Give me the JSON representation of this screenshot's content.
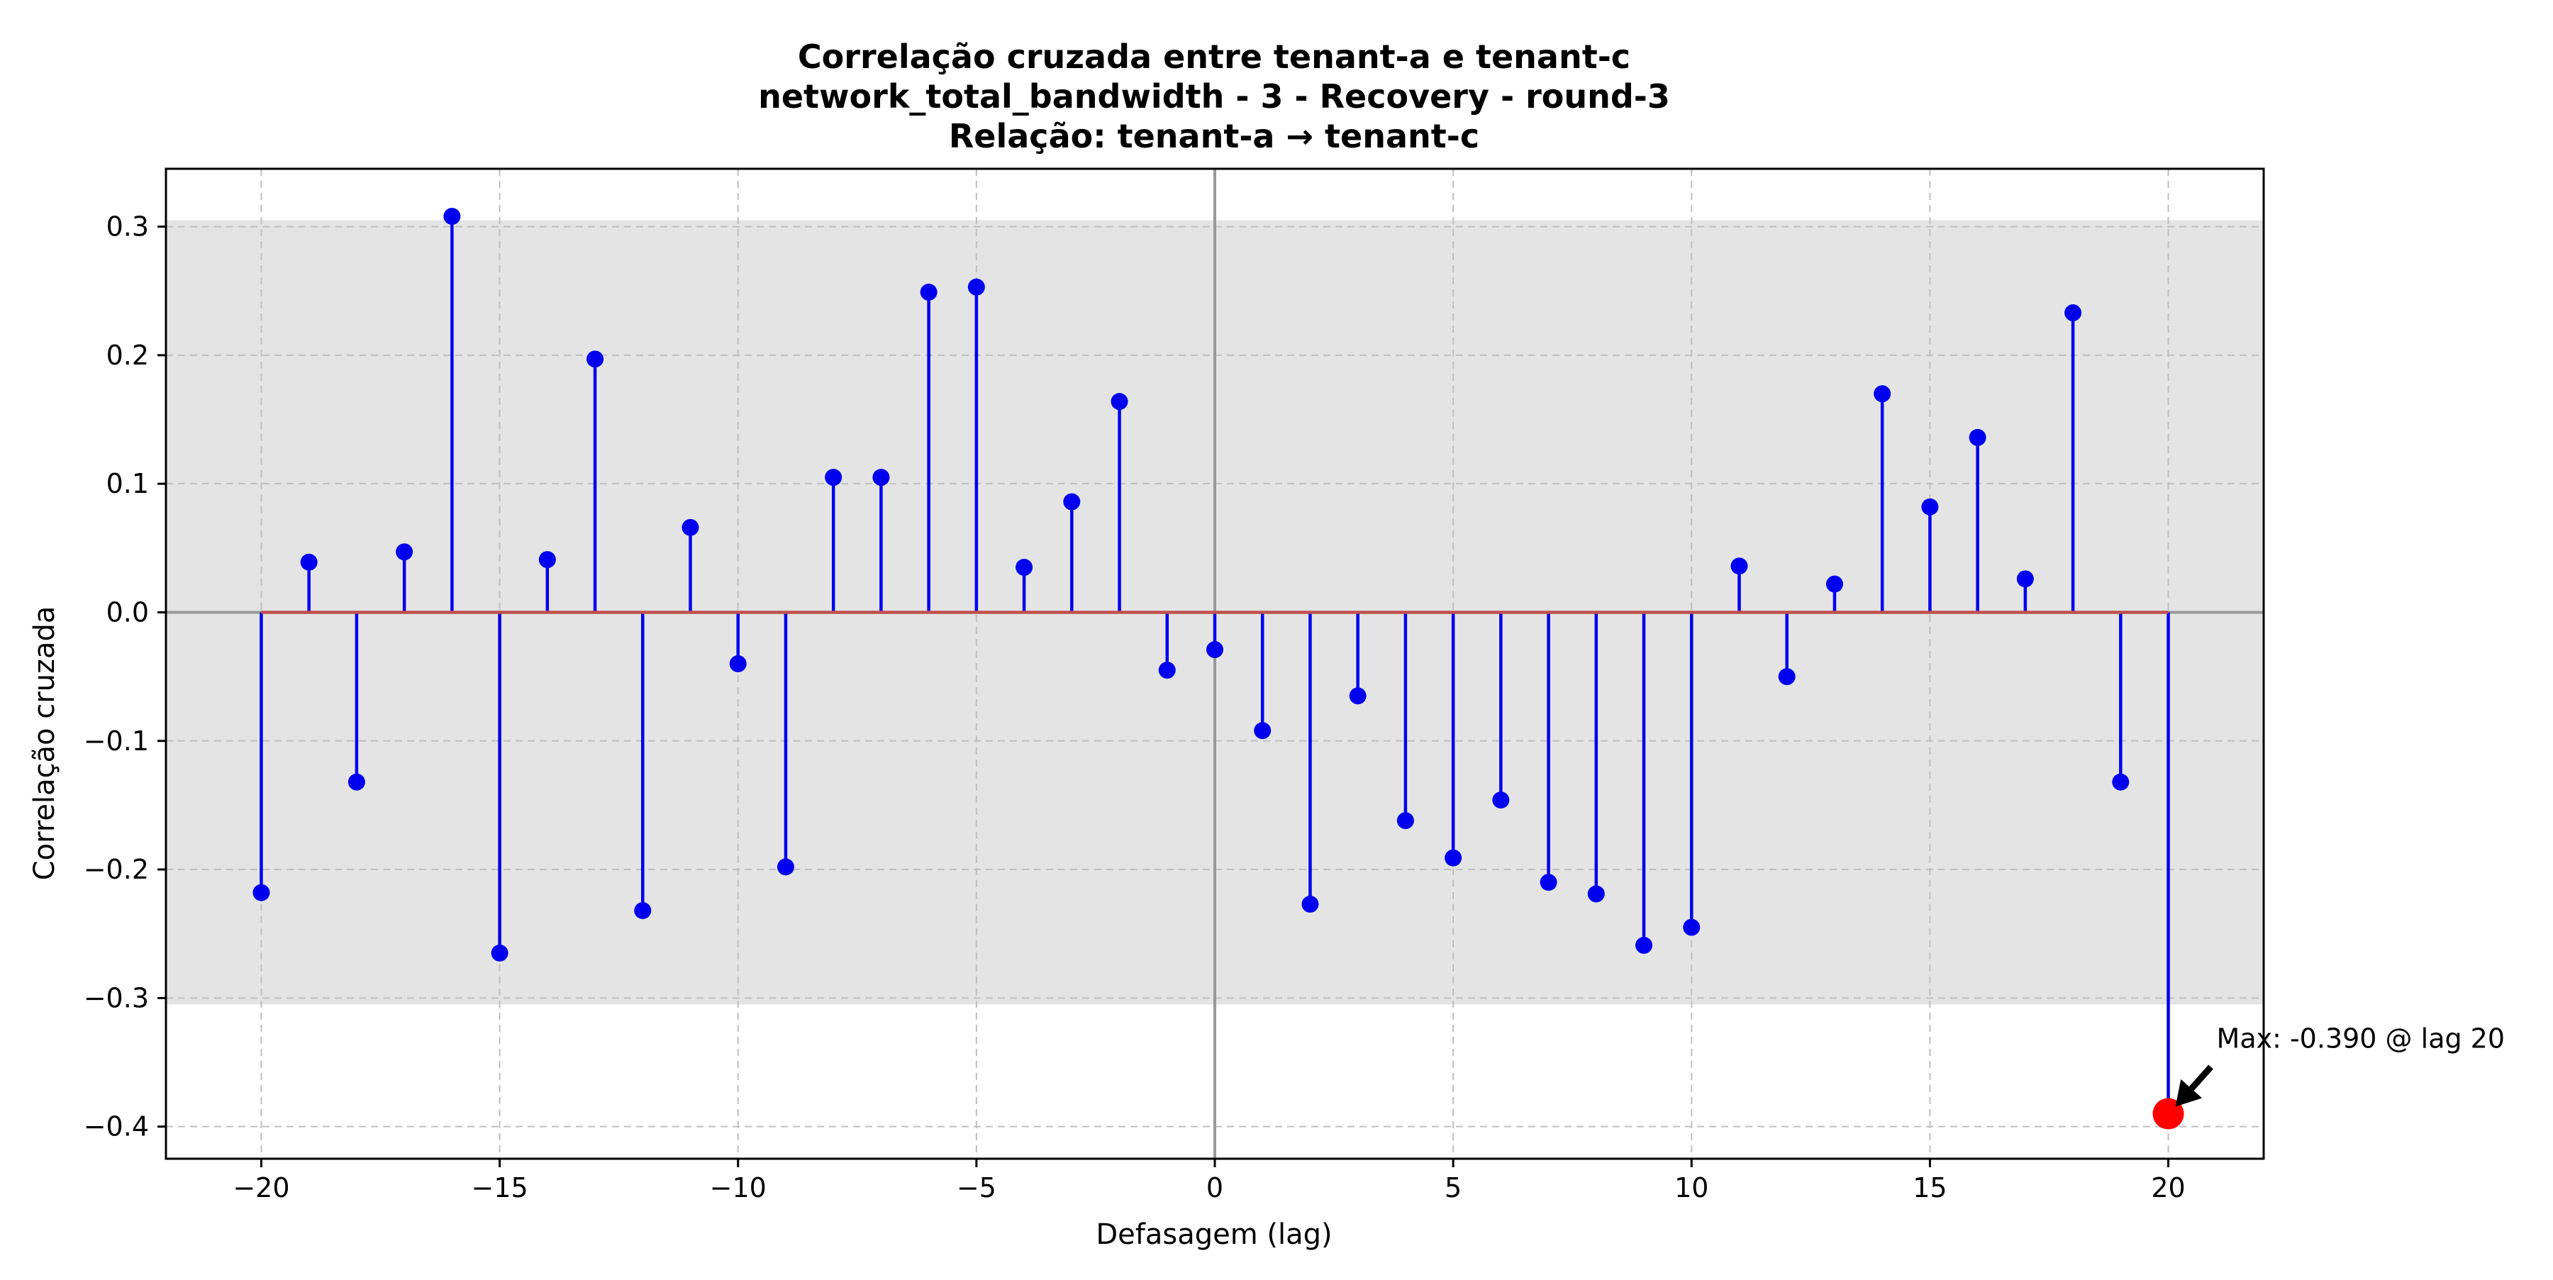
{
  "chart_data": {
    "type": "stem",
    "title": [
      "Correlação cruzada entre tenant-a e tenant-c",
      "network_total_bandwidth - 3 - Recovery - round-3",
      "Relação: tenant-a → tenant-c"
    ],
    "xlabel": "Defasagem (lag)",
    "ylabel": "Correlação cruzada",
    "xlim": [
      -22,
      22
    ],
    "ylim": [
      -0.425,
      0.345
    ],
    "xticks": [
      -20,
      -15,
      -10,
      -5,
      0,
      5,
      10,
      15,
      20
    ],
    "xtick_labels": [
      "−20",
      "−15",
      "−10",
      "−5",
      "0",
      "5",
      "10",
      "15",
      "20"
    ],
    "yticks": [
      -0.4,
      -0.3,
      -0.2,
      -0.1,
      0.0,
      0.1,
      0.2,
      0.3
    ],
    "ytick_labels": [
      "−0.4",
      "−0.3",
      "−0.2",
      "−0.1",
      "0.0",
      "0.1",
      "0.2",
      "0.3"
    ],
    "grid": true,
    "confidence_band": [
      -0.305,
      0.305
    ],
    "x": [
      -20,
      -19,
      -18,
      -17,
      -16,
      -15,
      -14,
      -13,
      -12,
      -11,
      -10,
      -9,
      -8,
      -7,
      -6,
      -5,
      -4,
      -3,
      -2,
      -1,
      0,
      1,
      2,
      3,
      4,
      5,
      6,
      7,
      8,
      9,
      10,
      11,
      12,
      13,
      14,
      15,
      16,
      17,
      18,
      19,
      20
    ],
    "y": [
      -0.218,
      0.039,
      -0.132,
      0.047,
      0.308,
      -0.265,
      0.041,
      0.197,
      -0.232,
      0.066,
      -0.04,
      -0.198,
      0.105,
      0.105,
      0.249,
      0.253,
      0.035,
      0.086,
      0.164,
      -0.045,
      -0.029,
      -0.092,
      -0.227,
      -0.065,
      -0.162,
      -0.191,
      -0.146,
      -0.21,
      -0.219,
      -0.259,
      -0.245,
      0.036,
      -0.05,
      0.022,
      0.17,
      0.082,
      0.136,
      0.026,
      0.233,
      -0.132,
      -0.39
    ],
    "max_point": {
      "x": 20,
      "y": -0.39
    },
    "annotation": "Max: -0.390 @ lag 20",
    "colors": {
      "stem": "#0000ee",
      "marker": "#0000ee",
      "baseline": "#c0504d",
      "max_marker": "#ff0000",
      "band": "#e4e4e4",
      "grid": "#bfbfbf",
      "zero_line": "#999999",
      "arrow": "#000000"
    }
  }
}
